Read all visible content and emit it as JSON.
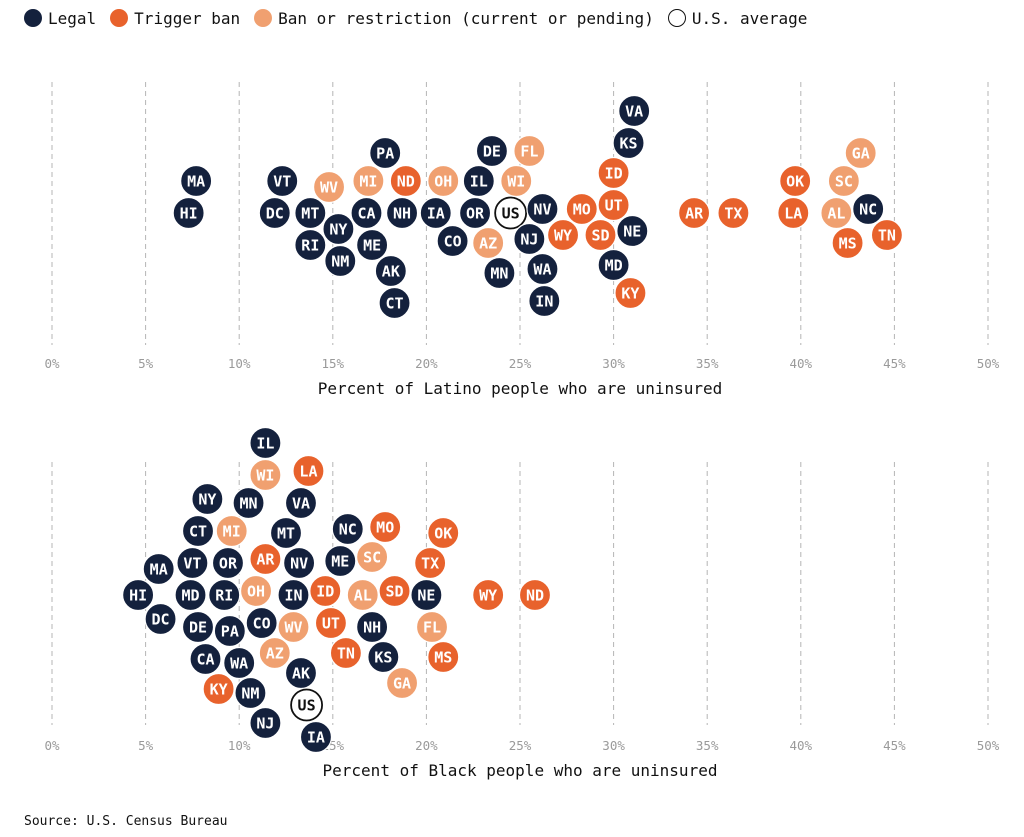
{
  "legend": {
    "items": [
      {
        "key": "legal",
        "label": "Legal",
        "color": "#14213d"
      },
      {
        "key": "trigger",
        "label": "Trigger ban",
        "color": "#e8622c"
      },
      {
        "key": "ban",
        "label": "Ban or restriction (current or pending)",
        "color": "#f0a070"
      },
      {
        "key": "us",
        "label": "U.S. average",
        "color": "#ffffff"
      }
    ]
  },
  "source": "Source: U.S. Census Bureau",
  "chart_data": [
    {
      "type": "scatter",
      "xlabel": "Percent of Latino people who are uninsured",
      "xlim": [
        0,
        50
      ],
      "ticks": [
        "0%",
        "5%",
        "10%",
        "15%",
        "20%",
        "25%",
        "30%",
        "35%",
        "40%",
        "45%",
        "50%"
      ],
      "points": [
        {
          "label": "HI",
          "x": 7.3,
          "cat": "legal"
        },
        {
          "label": "MA",
          "x": 7.7,
          "cat": "legal"
        },
        {
          "label": "DC",
          "x": 11.9,
          "cat": "legal"
        },
        {
          "label": "VT",
          "x": 12.3,
          "cat": "legal"
        },
        {
          "label": "MT",
          "x": 13.8,
          "cat": "legal"
        },
        {
          "label": "RI",
          "x": 13.8,
          "cat": "legal"
        },
        {
          "label": "NM",
          "x": 15.4,
          "cat": "legal"
        },
        {
          "label": "NY",
          "x": 15.3,
          "cat": "legal"
        },
        {
          "label": "WV",
          "x": 14.8,
          "cat": "ban"
        },
        {
          "label": "CA",
          "x": 16.8,
          "cat": "legal"
        },
        {
          "label": "MI",
          "x": 16.9,
          "cat": "ban"
        },
        {
          "label": "ME",
          "x": 17.1,
          "cat": "legal"
        },
        {
          "label": "AK",
          "x": 18.1,
          "cat": "legal"
        },
        {
          "label": "CT",
          "x": 18.3,
          "cat": "legal"
        },
        {
          "label": "PA",
          "x": 17.8,
          "cat": "legal"
        },
        {
          "label": "NH",
          "x": 18.7,
          "cat": "legal"
        },
        {
          "label": "ND",
          "x": 18.9,
          "cat": "trigger"
        },
        {
          "label": "IA",
          "x": 20.5,
          "cat": "legal"
        },
        {
          "label": "OH",
          "x": 20.9,
          "cat": "ban"
        },
        {
          "label": "CO",
          "x": 21.4,
          "cat": "legal"
        },
        {
          "label": "OR",
          "x": 22.6,
          "cat": "legal"
        },
        {
          "label": "IL",
          "x": 22.8,
          "cat": "legal"
        },
        {
          "label": "AZ",
          "x": 23.3,
          "cat": "ban"
        },
        {
          "label": "DE",
          "x": 23.5,
          "cat": "legal"
        },
        {
          "label": "MN",
          "x": 23.9,
          "cat": "legal"
        },
        {
          "label": "US",
          "x": 24.5,
          "cat": "us"
        },
        {
          "label": "WI",
          "x": 24.8,
          "cat": "ban"
        },
        {
          "label": "NJ",
          "x": 25.5,
          "cat": "legal"
        },
        {
          "label": "FL",
          "x": 25.5,
          "cat": "ban"
        },
        {
          "label": "NV",
          "x": 26.2,
          "cat": "legal"
        },
        {
          "label": "WA",
          "x": 26.2,
          "cat": "legal"
        },
        {
          "label": "IN",
          "x": 26.3,
          "cat": "legal"
        },
        {
          "label": "WY",
          "x": 27.3,
          "cat": "trigger"
        },
        {
          "label": "MO",
          "x": 28.3,
          "cat": "trigger"
        },
        {
          "label": "SD",
          "x": 29.3,
          "cat": "trigger"
        },
        {
          "label": "UT",
          "x": 30.0,
          "cat": "trigger"
        },
        {
          "label": "ID",
          "x": 30.0,
          "cat": "trigger"
        },
        {
          "label": "MD",
          "x": 30.0,
          "cat": "legal"
        },
        {
          "label": "KS",
          "x": 30.8,
          "cat": "legal"
        },
        {
          "label": "NE",
          "x": 31.0,
          "cat": "legal"
        },
        {
          "label": "KY",
          "x": 30.9,
          "cat": "trigger"
        },
        {
          "label": "VA",
          "x": 31.1,
          "cat": "legal"
        },
        {
          "label": "AR",
          "x": 34.3,
          "cat": "trigger"
        },
        {
          "label": "TX",
          "x": 36.4,
          "cat": "trigger"
        },
        {
          "label": "LA",
          "x": 39.6,
          "cat": "trigger"
        },
        {
          "label": "OK",
          "x": 39.7,
          "cat": "trigger"
        },
        {
          "label": "AL",
          "x": 41.9,
          "cat": "ban"
        },
        {
          "label": "SC",
          "x": 42.3,
          "cat": "ban"
        },
        {
          "label": "MS",
          "x": 42.5,
          "cat": "trigger"
        },
        {
          "label": "GA",
          "x": 43.2,
          "cat": "ban"
        },
        {
          "label": "NC",
          "x": 43.6,
          "cat": "legal"
        },
        {
          "label": "TN",
          "x": 44.6,
          "cat": "trigger"
        }
      ]
    },
    {
      "type": "scatter",
      "xlabel": "Percent of Black people who are uninsured",
      "xlim": [
        0,
        50
      ],
      "ticks": [
        "0%",
        "5%",
        "10%",
        "15%",
        "20%",
        "25%",
        "30%",
        "35%",
        "40%",
        "45%",
        "50%"
      ],
      "points": [
        {
          "label": "HI",
          "x": 4.6,
          "cat": "legal"
        },
        {
          "label": "MA",
          "x": 5.7,
          "cat": "legal"
        },
        {
          "label": "DC",
          "x": 5.8,
          "cat": "legal"
        },
        {
          "label": "MD",
          "x": 7.4,
          "cat": "legal"
        },
        {
          "label": "DE",
          "x": 7.8,
          "cat": "legal"
        },
        {
          "label": "VT",
          "x": 7.5,
          "cat": "legal"
        },
        {
          "label": "CT",
          "x": 7.8,
          "cat": "legal"
        },
        {
          "label": "CA",
          "x": 8.2,
          "cat": "legal"
        },
        {
          "label": "NY",
          "x": 8.3,
          "cat": "legal"
        },
        {
          "label": "KY",
          "x": 8.9,
          "cat": "trigger"
        },
        {
          "label": "RI",
          "x": 9.2,
          "cat": "legal"
        },
        {
          "label": "OR",
          "x": 9.4,
          "cat": "legal"
        },
        {
          "label": "PA",
          "x": 9.5,
          "cat": "legal"
        },
        {
          "label": "MI",
          "x": 9.6,
          "cat": "ban"
        },
        {
          "label": "WA",
          "x": 10.0,
          "cat": "legal"
        },
        {
          "label": "MN",
          "x": 10.5,
          "cat": "legal"
        },
        {
          "label": "NM",
          "x": 10.6,
          "cat": "legal"
        },
        {
          "label": "OH",
          "x": 10.9,
          "cat": "ban"
        },
        {
          "label": "CO",
          "x": 11.2,
          "cat": "legal"
        },
        {
          "label": "AR",
          "x": 11.4,
          "cat": "trigger"
        },
        {
          "label": "WI",
          "x": 11.4,
          "cat": "ban"
        },
        {
          "label": "NJ",
          "x": 11.4,
          "cat": "legal"
        },
        {
          "label": "IL",
          "x": 11.4,
          "cat": "legal"
        },
        {
          "label": "AZ",
          "x": 11.9,
          "cat": "ban"
        },
        {
          "label": "MT",
          "x": 12.5,
          "cat": "legal"
        },
        {
          "label": "IN",
          "x": 12.9,
          "cat": "legal"
        },
        {
          "label": "WV",
          "x": 12.9,
          "cat": "ban"
        },
        {
          "label": "NV",
          "x": 13.2,
          "cat": "legal"
        },
        {
          "label": "AK",
          "x": 13.3,
          "cat": "legal"
        },
        {
          "label": "VA",
          "x": 13.3,
          "cat": "legal"
        },
        {
          "label": "US",
          "x": 13.6,
          "cat": "us"
        },
        {
          "label": "LA",
          "x": 13.7,
          "cat": "trigger"
        },
        {
          "label": "IA",
          "x": 14.1,
          "cat": "legal"
        },
        {
          "label": "ID",
          "x": 14.6,
          "cat": "trigger"
        },
        {
          "label": "UT",
          "x": 14.9,
          "cat": "trigger"
        },
        {
          "label": "ME",
          "x": 15.4,
          "cat": "legal"
        },
        {
          "label": "TN",
          "x": 15.7,
          "cat": "trigger"
        },
        {
          "label": "NC",
          "x": 15.8,
          "cat": "legal"
        },
        {
          "label": "AL",
          "x": 16.6,
          "cat": "ban"
        },
        {
          "label": "NH",
          "x": 17.1,
          "cat": "legal"
        },
        {
          "label": "SC",
          "x": 17.1,
          "cat": "ban"
        },
        {
          "label": "KS",
          "x": 17.7,
          "cat": "legal"
        },
        {
          "label": "MO",
          "x": 17.8,
          "cat": "trigger"
        },
        {
          "label": "SD",
          "x": 18.3,
          "cat": "trigger"
        },
        {
          "label": "GA",
          "x": 18.7,
          "cat": "ban"
        },
        {
          "label": "NE",
          "x": 20.0,
          "cat": "legal"
        },
        {
          "label": "TX",
          "x": 20.2,
          "cat": "trigger"
        },
        {
          "label": "FL",
          "x": 20.3,
          "cat": "ban"
        },
        {
          "label": "OK",
          "x": 20.9,
          "cat": "trigger"
        },
        {
          "label": "MS",
          "x": 20.9,
          "cat": "trigger"
        },
        {
          "label": "WY",
          "x": 23.3,
          "cat": "trigger"
        },
        {
          "label": "ND",
          "x": 25.8,
          "cat": "trigger"
        }
      ]
    }
  ]
}
